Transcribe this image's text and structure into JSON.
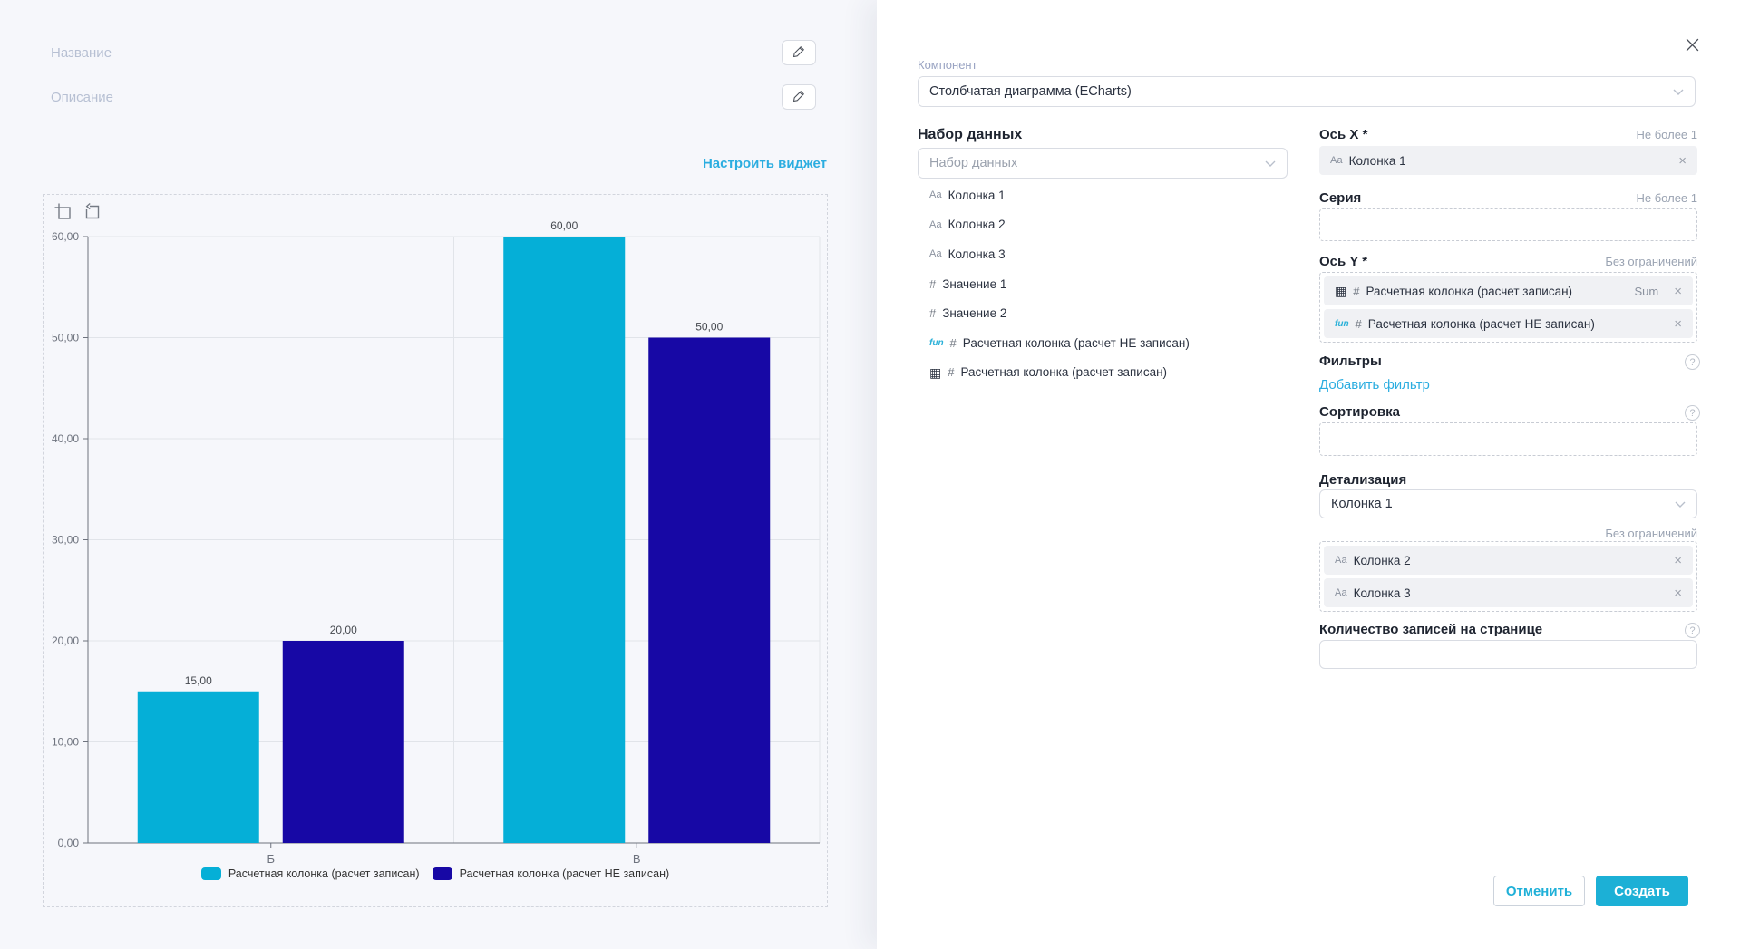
{
  "left_panel": {
    "name_label": "Название",
    "description_label": "Описание",
    "configure_widget_link": "Настроить виджет"
  },
  "chart_data": {
    "type": "bar",
    "title": "",
    "categories": [
      "Б",
      "В"
    ],
    "series": [
      {
        "name": "Расчетная колонка (расчет записан)",
        "color": "#05afd7",
        "values": [
          15,
          60
        ]
      },
      {
        "name": "Расчетная колонка (расчет НЕ записан)",
        "color": "#1708a5",
        "values": [
          20,
          50
        ]
      }
    ],
    "ylim": [
      0,
      60
    ],
    "y_ticks": [
      "0,00",
      "10,00",
      "20,00",
      "30,00",
      "40,00",
      "50,00",
      "60,00"
    ],
    "value_labels": [
      [
        "15,00",
        "60,00"
      ],
      [
        "20,00",
        "50,00"
      ]
    ],
    "xlabel": "",
    "ylabel": "",
    "grid": true,
    "legend_position": "bottom"
  },
  "panel": {
    "component_label": "Компонент",
    "component_value": "Столбчатая диаграмма (ECharts)",
    "dataset": {
      "heading": "Набор данных",
      "select_placeholder": "Набор данных",
      "fields": [
        {
          "icons": [
            "text"
          ],
          "label": "Колонка 1"
        },
        {
          "icons": [
            "text"
          ],
          "label": "Колонка 2"
        },
        {
          "icons": [
            "text"
          ],
          "label": "Колонка 3"
        },
        {
          "icons": [
            "number"
          ],
          "label": "Значение 1"
        },
        {
          "icons": [
            "number"
          ],
          "label": "Значение 2"
        },
        {
          "icons": [
            "function",
            "number"
          ],
          "label": "Расчетная колонка (расчет НЕ записан)"
        },
        {
          "icons": [
            "calc",
            "number"
          ],
          "label": "Расчетная колонка (расчет записан)"
        }
      ]
    },
    "axis_x": {
      "label": "Ось X *",
      "limit": "Не более 1",
      "chips": [
        {
          "icons": [
            "text"
          ],
          "label": "Колонка 1"
        }
      ]
    },
    "series_field": {
      "label": "Серия",
      "limit": "Не более 1"
    },
    "axis_y": {
      "label": "Ось Y *",
      "limit": "Без ограничений",
      "chips": [
        {
          "icons": [
            "calc",
            "number"
          ],
          "label": "Расчетная колонка (расчет записан)",
          "agg": "Sum"
        },
        {
          "icons": [
            "function",
            "number"
          ],
          "label": "Расчетная колонка (расчет НЕ записан)"
        }
      ]
    },
    "filters": {
      "label": "Фильтры",
      "add_link": "Добавить фильтр"
    },
    "sorting": {
      "label": "Сортировка"
    },
    "detail": {
      "label": "Детализация",
      "select_value": "Колонка 1",
      "limit": "Без ограничений",
      "chips": [
        {
          "icons": [
            "text"
          ],
          "label": "Колонка 2"
        },
        {
          "icons": [
            "text"
          ],
          "label": "Колонка 3"
        }
      ]
    },
    "page_size": {
      "label": "Количество записей на странице"
    },
    "buttons": {
      "cancel": "Отменить",
      "create": "Создать"
    }
  },
  "icons": {
    "remove": "×",
    "help": "?",
    "field_glyphs": {
      "text": "Аа",
      "number": "#",
      "function": "fun",
      "calc": "▦"
    }
  },
  "colors": {
    "accent": "#1cb0d6",
    "link": "#2bade0"
  }
}
